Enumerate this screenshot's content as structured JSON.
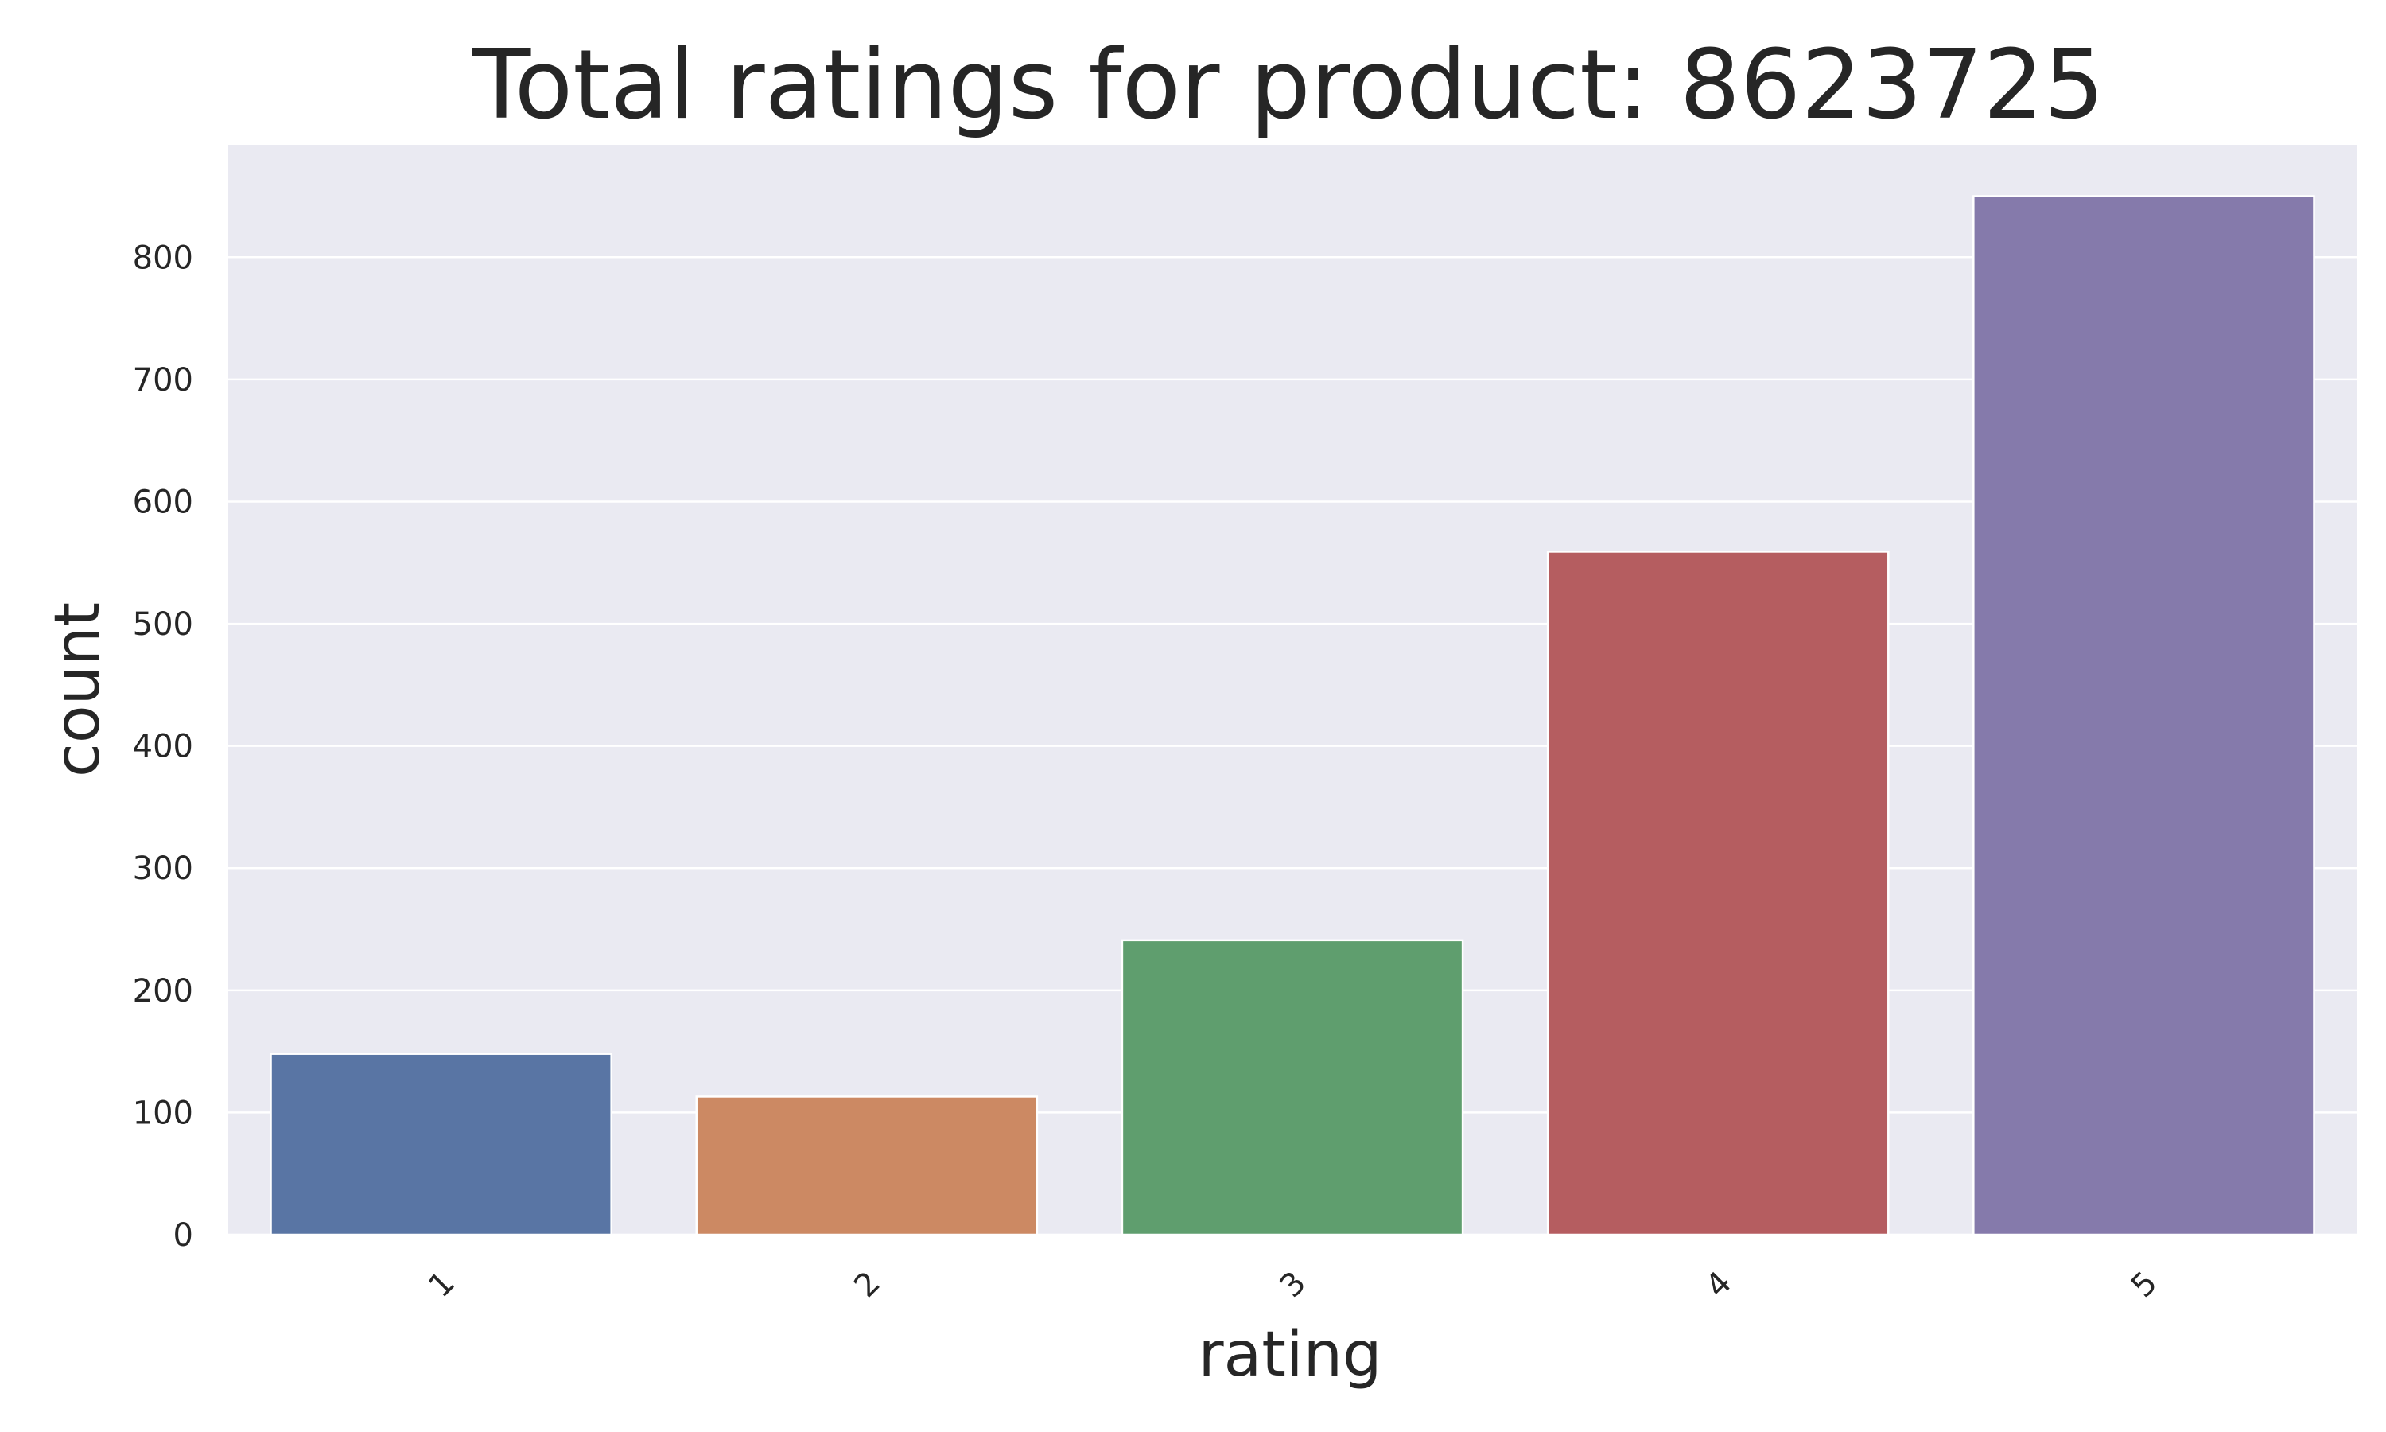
{
  "chart_data": {
    "type": "bar",
    "title": "Total ratings for product: 8623725",
    "xlabel": "rating",
    "ylabel": "count",
    "categories": [
      "1",
      "2",
      "3",
      "4",
      "5"
    ],
    "values": [
      148,
      113,
      241,
      559,
      850
    ],
    "colors": [
      "#5975a4",
      "#cc8963",
      "#5f9e6e",
      "#b55d60",
      "#857aab"
    ],
    "ylim": [
      0,
      892
    ],
    "yticks": [
      0,
      100,
      200,
      300,
      400,
      500,
      600,
      700,
      800
    ],
    "ytick_labels": [
      "0",
      "100",
      "200",
      "300",
      "400",
      "500",
      "600",
      "700",
      "800"
    ],
    "xtick_rotation": "45 degrees",
    "grid": true,
    "legend": "none",
    "plot_background": "#eaeaf2",
    "grid_color": "#ffffff",
    "text_color": "#262626"
  }
}
